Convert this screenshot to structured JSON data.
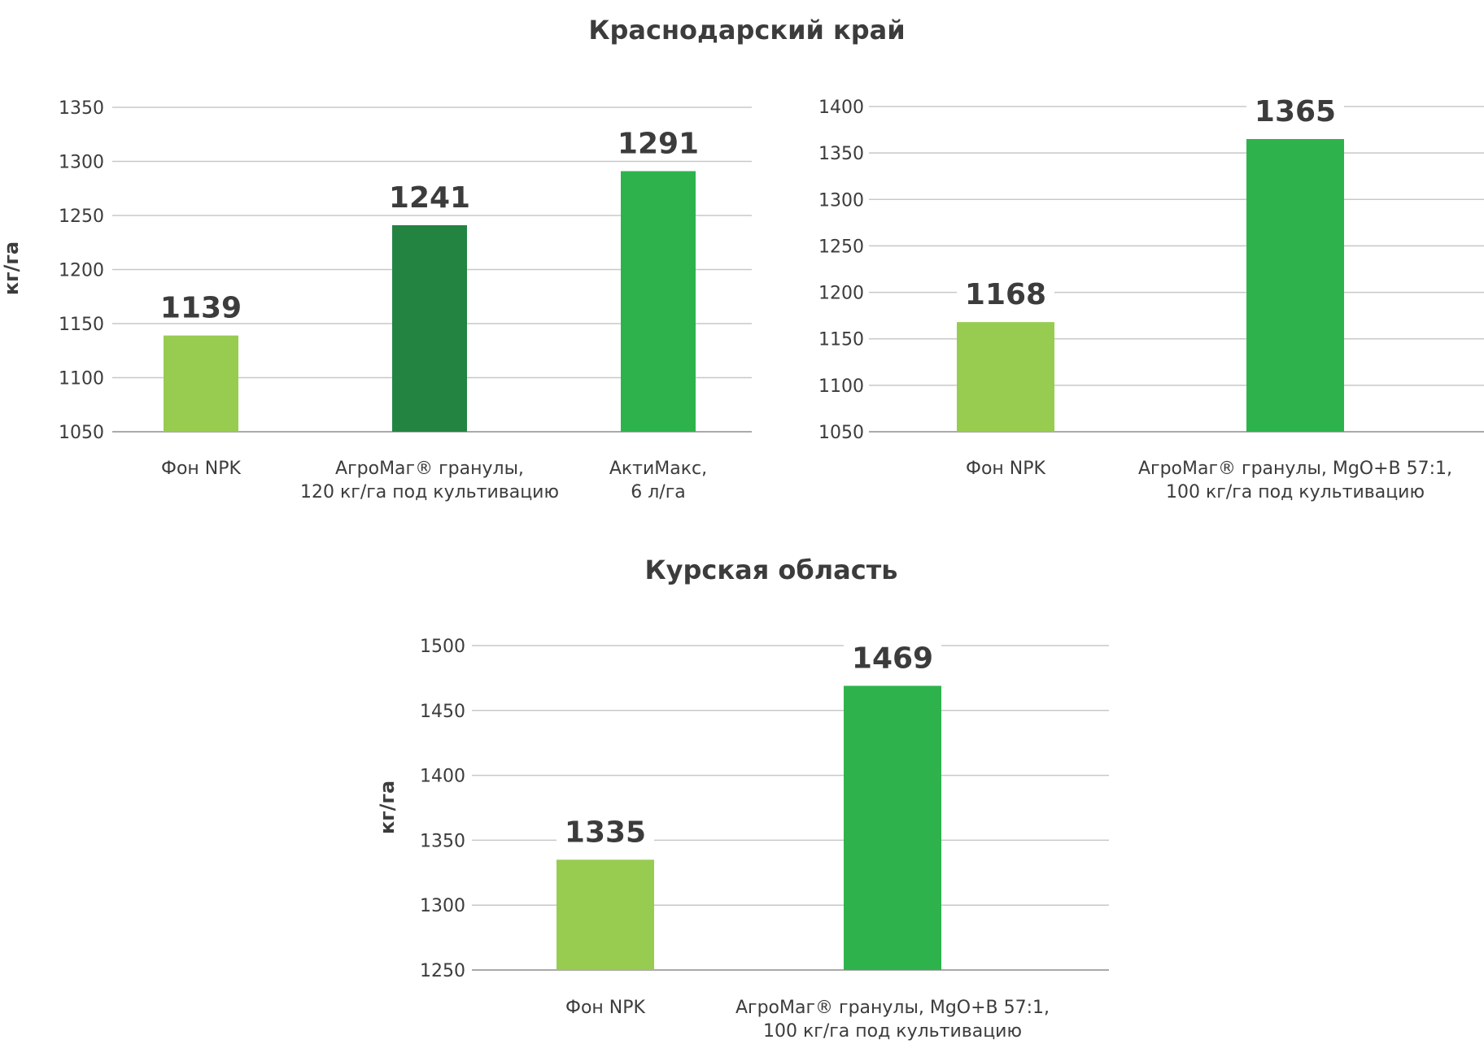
{
  "sections": [
    {
      "title": "Краснодарский край"
    },
    {
      "title": "Курская область"
    }
  ],
  "colors": {
    "light_green": "#97cc50",
    "dark_green": "#238442",
    "green": "#2eb34c",
    "text": "#3c3c3c",
    "grid": "#c8c8c8"
  },
  "chart_data": [
    {
      "type": "bar",
      "section": "Краснодарский край",
      "ylabel": "кг/га",
      "ylim": [
        1050,
        1350
      ],
      "yticks": [
        1050,
        1100,
        1150,
        1200,
        1250,
        1300,
        1350
      ],
      "categories": [
        [
          "Фон NPK"
        ],
        [
          "АгроМаг® гранулы,",
          "120 кг/га под культивацию"
        ],
        [
          "АктиМакс,",
          "6 л/га"
        ]
      ],
      "values": [
        1139,
        1241,
        1291
      ],
      "bar_colors": [
        "#97cc50",
        "#238442",
        "#2eb34c"
      ],
      "grid": true
    },
    {
      "type": "bar",
      "section": "Краснодарский край",
      "ylabel": "",
      "ylim": [
        1050,
        1400
      ],
      "yticks": [
        1050,
        1100,
        1150,
        1200,
        1250,
        1300,
        1350,
        1400
      ],
      "categories": [
        [
          "Фон NPK"
        ],
        [
          "АгроМаг® гранулы, MgO+B 57:1,",
          "100 кг/га под культивацию"
        ]
      ],
      "values": [
        1168,
        1365
      ],
      "bar_colors": [
        "#97cc50",
        "#2eb34c"
      ],
      "grid": true
    },
    {
      "type": "bar",
      "section": "Курская область",
      "ylabel": "кг/га",
      "ylim": [
        1250,
        1500
      ],
      "yticks": [
        1250,
        1300,
        1350,
        1400,
        1450,
        1500
      ],
      "categories": [
        [
          "Фон NPK"
        ],
        [
          "АгроМаг® гранулы, MgO+B 57:1,",
          "100 кг/га под культивацию"
        ]
      ],
      "values": [
        1335,
        1469
      ],
      "bar_colors": [
        "#97cc50",
        "#2eb34c"
      ],
      "grid": true
    }
  ]
}
